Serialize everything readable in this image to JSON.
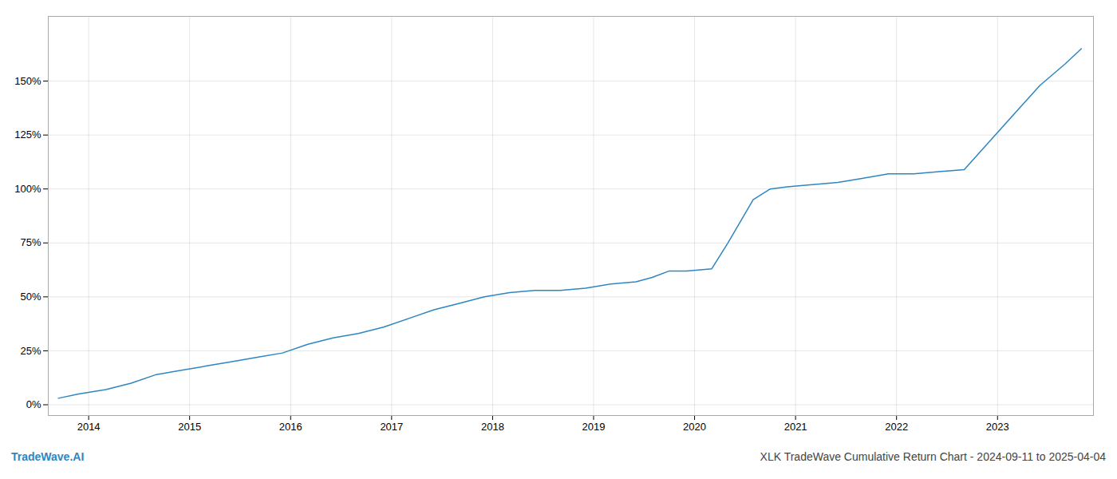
{
  "chart_data": {
    "type": "line",
    "title": "XLK TradeWave Cumulative Return Chart - 2024-09-11 to 2025-04-04",
    "annotations": [
      {
        "text": "TradeWave.AI",
        "color": "#2e86c1"
      }
    ],
    "x": [
      2013.7,
      2013.9,
      2014.17,
      2014.42,
      2014.67,
      2014.92,
      2015.17,
      2015.42,
      2015.67,
      2015.92,
      2016.17,
      2016.42,
      2016.67,
      2016.92,
      2017.17,
      2017.42,
      2017.67,
      2017.92,
      2018.17,
      2018.42,
      2018.67,
      2018.92,
      2019.17,
      2019.42,
      2019.58,
      2019.75,
      2019.92,
      2020.17,
      2020.33,
      2020.58,
      2020.75,
      2020.92,
      2021.17,
      2021.42,
      2021.67,
      2021.92,
      2022.17,
      2022.42,
      2022.67,
      2022.92,
      2023.17,
      2023.42,
      2023.67,
      2023.83
    ],
    "values": [
      3,
      5,
      7,
      10,
      14,
      16,
      18,
      20,
      22,
      24,
      28,
      31,
      33,
      36,
      40,
      44,
      47,
      50,
      52,
      53,
      53,
      54,
      56,
      57,
      59,
      62,
      62,
      63,
      75,
      95,
      100,
      101,
      102,
      103,
      105,
      107,
      107,
      108,
      109,
      122,
      135,
      148,
      158,
      165
    ],
    "color": "#2e86c1",
    "xlim": [
      2013.6,
      2023.95
    ],
    "xticks": [
      2014,
      2015,
      2016,
      2017,
      2018,
      2019,
      2020,
      2021,
      2022,
      2023
    ],
    "ylim": [
      -5,
      180
    ],
    "yticks": [
      {
        "value": 0,
        "label": "0%"
      },
      {
        "value": 25,
        "label": "25%"
      },
      {
        "value": 50,
        "label": "50%"
      },
      {
        "value": 75,
        "label": "75%"
      },
      {
        "value": 100,
        "label": "100%"
      },
      {
        "value": 125,
        "label": "125%"
      },
      {
        "value": 150,
        "label": "150%"
      }
    ],
    "grid": true
  }
}
